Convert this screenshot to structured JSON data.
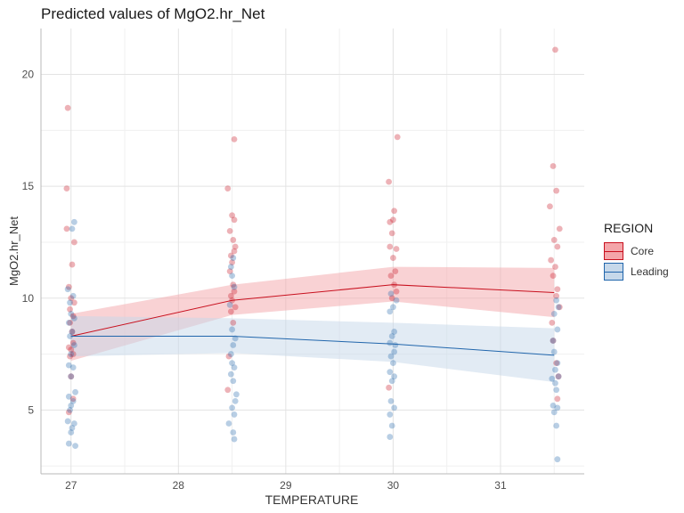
{
  "chart_data": {
    "type": "scatter",
    "title": "Predicted values of MgO2.hr_Net",
    "xlabel": "TEMPERATURE",
    "ylabel": "MgO2.hr_Net",
    "xlim": [
      26.72,
      31.78
    ],
    "ylim": [
      2.15,
      22.05
    ],
    "xticks": [
      27,
      28,
      29,
      30,
      31
    ],
    "yticks": [
      5,
      10,
      15,
      20
    ],
    "grid": true,
    "legend": {
      "title": "REGION",
      "position": "right"
    },
    "series": [
      {
        "name": "Core",
        "color": "#c8101e",
        "fill": "#f4a5a9",
        "x": [
          27,
          28.5,
          30,
          31.5
        ],
        "y": [
          8.3,
          9.9,
          10.6,
          10.25
        ],
        "lower": [
          7.2,
          9.25,
          9.85,
          9.15
        ],
        "upper": [
          9.3,
          10.6,
          11.4,
          11.35
        ],
        "points": [
          [
            26.97,
            18.5
          ],
          [
            26.96,
            14.9
          ],
          [
            26.96,
            13.1
          ],
          [
            27.03,
            12.5
          ],
          [
            27.01,
            11.5
          ],
          [
            26.98,
            10.5
          ],
          [
            27.0,
            10.0
          ],
          [
            27.03,
            9.8
          ],
          [
            26.99,
            9.5
          ],
          [
            27.02,
            9.2
          ],
          [
            26.99,
            8.9
          ],
          [
            27.01,
            8.5
          ],
          [
            27.02,
            8.0
          ],
          [
            26.98,
            7.8
          ],
          [
            27.0,
            7.7
          ],
          [
            27.02,
            7.5
          ],
          [
            26.99,
            7.4
          ],
          [
            27.0,
            6.5
          ],
          [
            27.02,
            5.5
          ],
          [
            26.98,
            4.9
          ],
          [
            28.52,
            17.1
          ],
          [
            28.46,
            14.9
          ],
          [
            28.5,
            13.7
          ],
          [
            28.52,
            13.5
          ],
          [
            28.48,
            13.0
          ],
          [
            28.51,
            12.6
          ],
          [
            28.53,
            12.3
          ],
          [
            28.52,
            12.1
          ],
          [
            28.49,
            11.9
          ],
          [
            28.5,
            11.6
          ],
          [
            28.48,
            11.2
          ],
          [
            28.51,
            10.6
          ],
          [
            28.52,
            10.3
          ],
          [
            28.49,
            10.1
          ],
          [
            28.5,
            9.9
          ],
          [
            28.53,
            9.6
          ],
          [
            28.49,
            9.4
          ],
          [
            28.51,
            8.9
          ],
          [
            28.47,
            7.4
          ],
          [
            28.46,
            5.9
          ],
          [
            30.04,
            17.2
          ],
          [
            29.96,
            15.2
          ],
          [
            30.01,
            13.9
          ],
          [
            29.97,
            13.4
          ],
          [
            30.0,
            13.5
          ],
          [
            29.99,
            12.9
          ],
          [
            29.97,
            12.3
          ],
          [
            30.03,
            12.2
          ],
          [
            30.0,
            11.8
          ],
          [
            30.02,
            11.2
          ],
          [
            29.98,
            11.0
          ],
          [
            30.01,
            10.6
          ],
          [
            30.03,
            10.3
          ],
          [
            29.99,
            10.0
          ],
          [
            29.96,
            6.0
          ],
          [
            31.51,
            21.1
          ],
          [
            31.49,
            15.9
          ],
          [
            31.52,
            14.8
          ],
          [
            31.46,
            14.1
          ],
          [
            31.55,
            13.1
          ],
          [
            31.5,
            12.6
          ],
          [
            31.53,
            12.3
          ],
          [
            31.47,
            11.7
          ],
          [
            31.51,
            11.4
          ],
          [
            31.49,
            11.0
          ],
          [
            31.53,
            10.4
          ],
          [
            31.52,
            10.1
          ],
          [
            31.55,
            9.6
          ],
          [
            31.48,
            8.9
          ],
          [
            31.49,
            8.1
          ],
          [
            31.52,
            7.1
          ],
          [
            31.54,
            6.5
          ],
          [
            31.53,
            5.5
          ]
        ]
      },
      {
        "name": "Leading",
        "color": "#2166ac",
        "fill": "#c6d8ea",
        "x": [
          27,
          28.5,
          30,
          31.5
        ],
        "y": [
          8.3,
          8.3,
          7.95,
          7.45
        ],
        "lower": [
          7.4,
          7.55,
          7.15,
          6.25
        ],
        "upper": [
          9.2,
          9.1,
          8.9,
          8.65
        ],
        "points": [
          [
            27.03,
            13.4
          ],
          [
            27.01,
            13.1
          ],
          [
            26.97,
            10.4
          ],
          [
            27.02,
            10.1
          ],
          [
            26.99,
            9.8
          ],
          [
            27.0,
            9.3
          ],
          [
            27.03,
            9.1
          ],
          [
            26.98,
            8.9
          ],
          [
            27.01,
            8.5
          ],
          [
            26.99,
            8.3
          ],
          [
            27.03,
            7.9
          ],
          [
            27.0,
            7.5
          ],
          [
            26.98,
            7.0
          ],
          [
            27.02,
            6.9
          ],
          [
            27.0,
            6.5
          ],
          [
            27.04,
            5.8
          ],
          [
            26.98,
            5.6
          ],
          [
            27.02,
            5.4
          ],
          [
            27.0,
            5.2
          ],
          [
            26.99,
            5.0
          ],
          [
            26.97,
            4.5
          ],
          [
            27.03,
            4.4
          ],
          [
            27.01,
            4.2
          ],
          [
            27.0,
            4.0
          ],
          [
            26.98,
            3.5
          ],
          [
            27.04,
            3.4
          ],
          [
            28.51,
            11.8
          ],
          [
            28.49,
            11.4
          ],
          [
            28.5,
            11.0
          ],
          [
            28.52,
            10.5
          ],
          [
            28.48,
            9.7
          ],
          [
            28.5,
            8.6
          ],
          [
            28.53,
            8.2
          ],
          [
            28.51,
            7.9
          ],
          [
            28.49,
            7.5
          ],
          [
            28.5,
            7.1
          ],
          [
            28.52,
            6.9
          ],
          [
            28.49,
            6.6
          ],
          [
            28.51,
            6.3
          ],
          [
            28.54,
            5.7
          ],
          [
            28.53,
            5.4
          ],
          [
            28.5,
            5.1
          ],
          [
            28.52,
            4.8
          ],
          [
            28.47,
            4.4
          ],
          [
            28.51,
            4.0
          ],
          [
            28.52,
            3.7
          ],
          [
            29.98,
            10.2
          ],
          [
            30.03,
            9.9
          ],
          [
            30.0,
            9.6
          ],
          [
            29.97,
            9.4
          ],
          [
            30.01,
            8.5
          ],
          [
            29.99,
            8.3
          ],
          [
            29.97,
            8.0
          ],
          [
            30.02,
            7.9
          ],
          [
            30.01,
            7.6
          ],
          [
            29.98,
            7.4
          ],
          [
            30.0,
            7.1
          ],
          [
            29.97,
            6.7
          ],
          [
            30.01,
            6.5
          ],
          [
            29.99,
            6.3
          ],
          [
            29.98,
            5.4
          ],
          [
            30.01,
            5.1
          ],
          [
            29.97,
            4.8
          ],
          [
            29.99,
            4.3
          ],
          [
            29.97,
            3.8
          ],
          [
            31.52,
            9.9
          ],
          [
            31.54,
            9.6
          ],
          [
            31.5,
            9.3
          ],
          [
            31.53,
            8.6
          ],
          [
            31.49,
            8.1
          ],
          [
            31.5,
            7.6
          ],
          [
            31.53,
            7.1
          ],
          [
            31.51,
            6.8
          ],
          [
            31.54,
            6.5
          ],
          [
            31.48,
            6.4
          ],
          [
            31.51,
            6.2
          ],
          [
            31.52,
            5.9
          ],
          [
            31.49,
            5.2
          ],
          [
            31.53,
            5.1
          ],
          [
            31.5,
            4.9
          ],
          [
            31.52,
            4.3
          ],
          [
            31.53,
            2.8
          ]
        ]
      }
    ]
  }
}
